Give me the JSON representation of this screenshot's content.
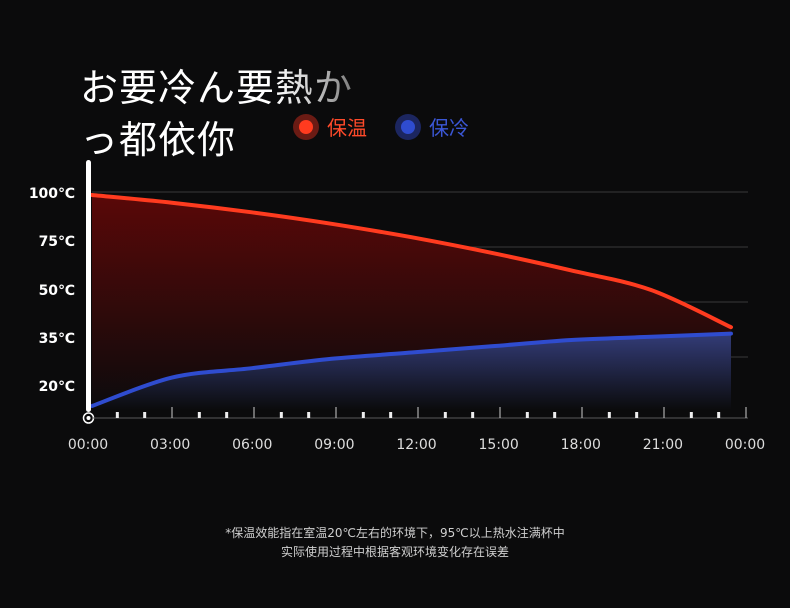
{
  "header": {
    "title_line1_a": "お要冷ん要",
    "title_line1_b": "熱か",
    "title_line2": "っ都依你"
  },
  "legend": {
    "warm_label": "保温",
    "cold_label": "保冷"
  },
  "colors": {
    "warm": "#ff3b1f",
    "cold": "#2f4ccf",
    "background": "#0b0b0c"
  },
  "chart_data": {
    "type": "area",
    "x": [
      "00:00",
      "03:00",
      "06:00",
      "09:00",
      "12:00",
      "15:00",
      "18:00",
      "21:00",
      "24:00"
    ],
    "x_tick_labels": [
      "00:00",
      "03:00",
      "06:00",
      "09:00",
      "12:00",
      "15:00",
      "18:00",
      "21:00",
      "00:00"
    ],
    "y_tick_labels": [
      "100℃",
      "75℃",
      "50℃",
      "35℃",
      "20℃"
    ],
    "series": [
      {
        "name": "保温",
        "values": [
          100,
          96,
          91,
          85,
          78,
          70,
          61,
          51,
          39
        ]
      },
      {
        "name": "保冷",
        "values": [
          20,
          23,
          26,
          29,
          31,
          33,
          35,
          36,
          37
        ]
      }
    ],
    "grid": true,
    "legend_position": "top"
  },
  "footnote": {
    "line1": "*保温效能指在室温20℃左右的环境下，95℃以上热水注满杯中",
    "line2": "实际使用过程中根据客观环境变化存在误差"
  }
}
